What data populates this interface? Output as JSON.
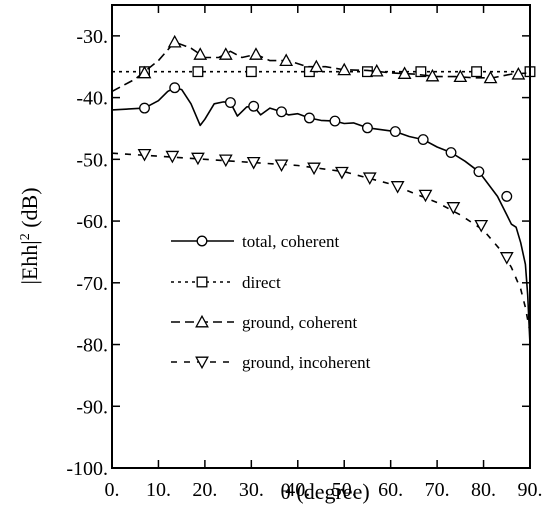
{
  "chart_data": {
    "type": "line",
    "xlabel": "θ (degree)",
    "ylabel": "|Ehh|",
    "ylabel_sup": "2",
    "ylabel_unit": " (dB)",
    "xlim": [
      0,
      90
    ],
    "ylim": [
      -100,
      -25
    ],
    "xticks": [
      0,
      10,
      20,
      30,
      40,
      50,
      60,
      70,
      80,
      90
    ],
    "xtick_labels": [
      "0.",
      "10.",
      "20.",
      "30.",
      "40.",
      "50.",
      "60.",
      "70.",
      "80.",
      "90."
    ],
    "yticks": [
      -30,
      -40,
      -50,
      -60,
      -70,
      -80,
      -90,
      -100
    ],
    "ytick_labels": [
      "-30.",
      "-40.",
      "-50.",
      "-60.",
      "-70.",
      "-80.",
      "-90.",
      "-100."
    ],
    "grid": false,
    "legend_position": "lower-left",
    "series": [
      {
        "name": "total, coherent",
        "dash": "solid",
        "marker": "circle",
        "x": [
          0,
          7,
          10,
          12,
          13.5,
          15,
          17,
          19,
          20,
          22,
          24,
          25.5,
          27,
          29,
          30.5,
          32,
          34,
          36.5,
          38,
          40,
          42.5,
          45,
          48,
          50,
          52,
          55,
          58,
          61,
          64,
          67,
          70,
          73,
          76,
          79,
          81,
          83,
          85,
          86,
          87,
          88,
          89,
          89.5,
          90
        ],
        "y": [
          -42,
          -41.7,
          -40.5,
          -39,
          -38.4,
          -38.7,
          -41,
          -44.5,
          -43.5,
          -41,
          -40.7,
          -40.8,
          -43,
          -41.5,
          -41.4,
          -42.8,
          -41.7,
          -42.3,
          -42.8,
          -42.6,
          -43.3,
          -43.7,
          -43.8,
          -44.2,
          -44.1,
          -44.9,
          -45.2,
          -45.5,
          -46.3,
          -46.8,
          -48,
          -48.9,
          -50.3,
          -52,
          -54,
          -56,
          -59,
          -60.5,
          -61,
          -63.5,
          -67,
          -72,
          -80
        ],
        "marker_x": [
          7,
          13.5,
          25.5,
          30.5,
          36.5,
          42.5,
          48,
          55,
          61,
          67,
          73,
          79,
          85
        ],
        "marker_y": [
          -41.7,
          -38.4,
          -40.8,
          -41.4,
          -42.3,
          -43.3,
          -43.8,
          -44.9,
          -45.5,
          -46.8,
          -48.9,
          -52,
          -56
        ]
      },
      {
        "name": "direct",
        "dash": "dot",
        "marker": "square",
        "x": [
          0,
          90
        ],
        "y": [
          -35.8,
          -35.8
        ],
        "marker_x": [
          7,
          18.5,
          30,
          42.5,
          55,
          66.5,
          78.5,
          90
        ],
        "marker_y": [
          -35.8,
          -35.8,
          -35.8,
          -35.8,
          -35.8,
          -35.8,
          -35.8,
          -35.8
        ]
      },
      {
        "name": "ground, coherent",
        "dash": "dash",
        "marker": "triangle-up",
        "x": [
          0,
          5,
          10,
          13.5,
          17,
          20,
          23,
          25.5,
          28,
          31,
          34,
          38,
          42,
          46,
          50,
          55,
          60,
          65,
          70,
          74,
          78,
          82,
          86,
          90
        ],
        "y": [
          -39,
          -37,
          -34,
          -31,
          -32,
          -33.5,
          -33.5,
          -32.5,
          -33.5,
          -33,
          -34,
          -34,
          -35,
          -35,
          -35.5,
          -35.6,
          -36,
          -36.2,
          -36.6,
          -36.6,
          -36.8,
          -36.8,
          -36.2,
          -36
        ],
        "marker_x": [
          7,
          13.5,
          19,
          24.5,
          31,
          37.5,
          44,
          50,
          57,
          63,
          69,
          75,
          81.5,
          87.5
        ],
        "marker_y": [
          -36,
          -31,
          -33,
          -33,
          -33,
          -34,
          -35,
          -35.5,
          -35.7,
          -36.1,
          -36.5,
          -36.6,
          -36.8,
          -36.2
        ]
      },
      {
        "name": "ground, incoherent",
        "dash": "short-dash",
        "marker": "triangle-down",
        "x": [
          0,
          10,
          20,
          30,
          40,
          50,
          55,
          60,
          65,
          70,
          75,
          80,
          84,
          86,
          88,
          89,
          90
        ],
        "y": [
          -49,
          -49.5,
          -50,
          -50.5,
          -51,
          -52,
          -53,
          -54,
          -55.5,
          -57,
          -59,
          -61.5,
          -65,
          -67.5,
          -71,
          -74,
          -78
        ],
        "marker_x": [
          7,
          13,
          18.5,
          24.5,
          30.5,
          36.5,
          43.5,
          49.5,
          55.5,
          61.5,
          67.5,
          73.5,
          79.5,
          85
        ],
        "marker_y": [
          -49.2,
          -49.5,
          -49.8,
          -50.1,
          -50.5,
          -50.9,
          -51.4,
          -52.1,
          -53,
          -54.4,
          -55.8,
          -57.8,
          -60.7,
          -65.9
        ]
      }
    ]
  }
}
